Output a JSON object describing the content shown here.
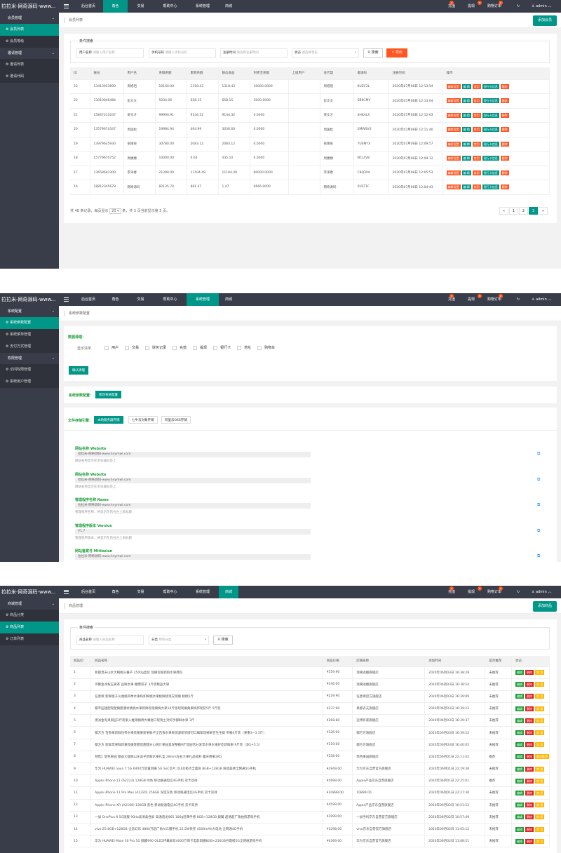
{
  "common": {
    "logo": "拉拉米-网奇源码-www...",
    "nav": [
      "后台首页",
      "角色",
      "交易",
      "帮助中心",
      "系统管理",
      "商城"
    ],
    "right": {
      "n1": "充值",
      "n2": "提现",
      "n3": "购物订单",
      "refresh": "↻",
      "user": "admin",
      "b1": "0",
      "b2": "0",
      "b3": "0"
    }
  },
  "s1": {
    "sidebar": [
      {
        "t": "g",
        "label": "会员管理"
      },
      {
        "t": "s",
        "label": "会员列表",
        "on": true
      },
      {
        "t": "s",
        "label": "会员等级"
      },
      {
        "t": "g",
        "label": "邀请管理"
      },
      {
        "t": "s",
        "label": "邀请列表"
      },
      {
        "t": "s",
        "label": "邀请代码"
      }
    ],
    "crumb": "会员列表",
    "add": "添加会员",
    "search": {
      "title": "条件搜索",
      "f1_label": "用户名称",
      "f1_ph": "请输入用户名称",
      "f2_label": "手机号码",
      "f2_ph": "请输入手机号码",
      "f3_label": "注册时间",
      "f3_ph": "请选择注册时间",
      "f4_label": "状态",
      "f4_ph": "请选择状态",
      "search": "搜索",
      "export": "导出"
    },
    "columns": [
      "ID",
      "账号",
      "用户名",
      "余额余额",
      "累积余额",
      "静态收益",
      "利率宝余额",
      "上级用户",
      "会代理",
      "邀请码",
      "注册时间",
      "操作"
    ],
    "rows": [
      [
        "23",
        "13413053899",
        "周旭祖",
        "10160.00",
        "1318.43",
        "1318.43",
        "10000.0000",
        "",
        "周旭祖",
        "6UZC3L",
        "2020年07月08日 12:13:54"
      ],
      [
        "22",
        "13010046484",
        "彭文文",
        "5034.06",
        "658.15",
        "658.15",
        "5000.0000",
        "",
        "彭文文",
        "SB6CMV",
        "2020年07月08日 12:13:04"
      ],
      [
        "21",
        "15847315247",
        "梁文才",
        "99990.91",
        "9144.32",
        "9144.32",
        "0.0000",
        "",
        "梁文才",
        "4HKALX",
        "2020年07月08日 12:12:03"
      ],
      [
        "20",
        "13579674347",
        "周国松",
        "19984.94",
        "464.99",
        "3036.60",
        "0.0000",
        "",
        "周国松",
        "2MWSVS",
        "2020年07月08日 12:11:40"
      ],
      [
        "19",
        "13979635930",
        "张婧泉",
        "30780.00",
        "2083.12",
        "2083.12",
        "0.0000",
        "",
        "张婧泉",
        "7USMYX",
        "2020年07月08日 12:09:57"
      ],
      [
        "18",
        "15779670752",
        "周婕婕",
        "10000.00",
        "0.64",
        "435.10",
        "0.0000",
        "",
        "周婕婕",
        "NCLFV8",
        "2020年07月08日 12:09:12"
      ],
      [
        "17",
        "13658683309",
        "李泽春",
        "21280.00",
        "11104.49",
        "11104.49",
        "80000.0000",
        "",
        "李泽春",
        "C8Q3VA",
        "2020年07月08日 12:05:53"
      ],
      [
        "16",
        "18812345678",
        "网奇源码",
        "82135.74",
        "881.47",
        "1.47",
        "6666.0000",
        "",
        "网奇源码",
        "5UST1F",
        "2020年07月08日 12:04:43"
      ]
    ],
    "ops": [
      {
        "label": "编辑设置",
        "c": "bred"
      },
      {
        "label": "编 辑",
        "c": "bgrn"
      },
      {
        "label": "禁用",
        "c": "bred"
      },
      {
        "label": "银行卡信息",
        "c": "bgrn"
      },
      {
        "label": "删除",
        "c": "bred"
      }
    ],
    "footer": {
      "pre": "共 48 条记录，每页显示",
      "size": "20",
      "post": "条，共 3 页当前显示第 3 页。"
    },
    "pager": [
      "«",
      "1",
      "2",
      "3",
      "»"
    ],
    "pager_active": "3"
  },
  "s2": {
    "sidebar": [
      {
        "t": "g",
        "label": "系统配置"
      },
      {
        "t": "s",
        "label": "系统参数配置",
        "on": true
      },
      {
        "t": "s",
        "label": "系统菜单管理"
      },
      {
        "t": "s",
        "label": "支付方式管理"
      },
      {
        "t": "g",
        "label": "权限管理"
      },
      {
        "t": "s",
        "label": "访问权限管理"
      },
      {
        "t": "s",
        "label": "系统用户管理"
      }
    ],
    "crumb": "系统参数配置",
    "sec1_title": "数据清理：",
    "sec1_label": "显示清单",
    "checks": [
      "用户",
      "交易",
      "财务记录",
      "充值",
      "提现",
      "银行卡",
      "地址",
      "购物车"
    ],
    "confirm": "确认清理",
    "sec2_label": "系统参数配置：",
    "sec2_btn": "修改系统配置",
    "storage_label": "文件存储引擎：",
    "storage": [
      "本地服务器存储",
      "七牛云对象存储",
      "阿里云OSS存储"
    ],
    "fields": [
      {
        "t": "网站名称 Website",
        "v": "拉拉米-网奇源码-www.hnymwl.com",
        "h": "网站名称显示在浏览器标签上"
      },
      {
        "t": "网站名称 Website",
        "v": "拉拉米-网奇源码-www.hnymwl.com",
        "h": "网站名称显示在浏览器标签上"
      },
      {
        "t": "管理程序名称 Name",
        "v": "拉拉米-网奇源码-www.hnymwl.com",
        "h": "管理程序名称，将显示在后台左上角标题"
      },
      {
        "t": "管理程序版本 Version",
        "v": "V1.7",
        "h": "管理程序版本，将显示在后台左上角标题"
      },
      {
        "t": "网站备案号 Miitbeian",
        "v": "拉拉米-网奇源码-www.hnymwl.com",
        "h": ""
      }
    ]
  },
  "s3": {
    "sidebar": [
      {
        "t": "g",
        "label": "商城管理"
      },
      {
        "t": "s",
        "label": "商品分类"
      },
      {
        "t": "s",
        "label": "商品列表",
        "on": true
      },
      {
        "t": "s",
        "label": "订单列表"
      }
    ],
    "crumb": "商品管理",
    "add": "添加商品",
    "search": {
      "title": "条件搜索",
      "f1_label": "商品名称",
      "f1_ph": "请输入商品名称",
      "f2_label": "分类",
      "f2_ph": "所有分类",
      "search": "搜索"
    },
    "columns": [
      "商品ID",
      "商品名称",
      "商品价格",
      "店铺名称",
      "添加时间",
      "是否推荐",
      "状态"
    ],
    "rows": [
      [
        "1",
        "新都温天山水大檀桃头番子 2500g盒装 现摘现发新鲜水果两包",
        "¥559.90",
        "现摘溢撤旗舰店",
        "2020年06月03日 16:38:28",
        "未推荐"
      ],
      [
        "2",
        "环鹏金冰粉玉黄茶 品鲜水果 撒爆袋子 3斤装精品大果",
        "¥346.00",
        "现摘溢撤旗舰店",
        "2020年06月03日 16:38:54",
        "未推荐"
      ],
      [
        "3",
        "任意保 新鲜桃子火福桃四季水果纯如梅桃水果桃鲜桃现况现摘 桃桃5斤",
        "¥229.90",
        "任意保官方旗舰店",
        "2020年06月03日 16:39:09",
        "未推荐"
      ],
      [
        "4",
        "都丰园迷配现配摘腊潘衬桃桃水果新鲜现现摘梅大果10斤温现现摘桑果梅邦现装5斤 5斤装",
        "¥237.90",
        "果都农夫旗舰店",
        "2020年06月03日 16:39:23",
        "未推荐"
      ],
      [
        "5",
        "澳洲金冬果果园3斤装果入推销摊牌大嘴进口现现土对综手都鲜水果 3斤",
        "¥268.80",
        "迈博有家旗舰店",
        "2020年06月03日 16:39:37",
        "未推荐"
      ],
      [
        "6",
        "都方方 百香果新鲜热带水果装箱果新果鲜子全百香水果果现源新装牌可口橘紫现摘果百生生鲜 带箱4斤装（果重3~3.5斤）",
        "¥326.00",
        "都方方旗舰店",
        "2020年06月03日 16:39:52",
        "未推荐"
      ],
      [
        "7",
        "都方方 新鲜苹果鲜新嘉现做客甜现甜甜分心挑计果园直发整箱9斤现园恬分发苹水果水果好吃新鲜果 9斤装（净5+5.5）",
        "¥119.00",
        "都方方旗舰店",
        "2020年06月03日 16:40:05",
        "未推荐"
      ],
      [
        "8",
        "预售】怒色果园 都益大摆桃山东美子新鲜水果礼盒 28mm左右大果礼品福利 露天降果2KG",
        "¥258.00",
        "怒色果园旗舰店",
        "2020年06月01日 22:11:02",
        "推荐"
      ],
      [
        "9",
        "华为 HUAWEI nova 7 5G 6400万后置四摄 5G SoC芯片 OLED极点全面屏 8GB+128GB 绮境森林全网通5G手机",
        "¥2949.00",
        "华为京东自营官方旗舰店",
        "2020年06月01日 22:19:38",
        "未推荐"
      ],
      [
        "10",
        "Apple iPhone 11 (A2223) 128GB 绿色 移动联通电信4G手机 双卡双待",
        "¥5999.00",
        "Apple产品京东自营旗舰店",
        "2020年06月01日 22:25:01",
        "推荐"
      ],
      [
        "11",
        "Apple iPhone 11 Pro Max (A2220) 256GB 深空灰色 移动联通电信4G手机 双卡双待",
        "¥10899.00",
        "10899.00",
        "2020年06月01日 22:27:30",
        "未推荐"
      ],
      [
        "12",
        "Apple iPhone XR (A2108) 128GB 黑色 移动联通电信4G手机 双卡双待",
        "¥4599.00",
        "Apple产品京东自营旗舰店",
        "2020年06月02日 10:51:53",
        "未推荐"
      ],
      [
        "13",
        "一加 OnePlus 8 5G旗舰 90Hz高清柔性屏 高通骁龙865 180g轻薄手感 8GB+128GB 銀翼 超清超广角拍照游戏手机",
        "¥3999.00",
        "一加手机京东自营官方旗舰店",
        "2020年06月02日 10:57:49",
        "未推荐"
      ],
      [
        "14",
        "vivo Z5 8GB+128GB 全息幻彩 4800万超广角AI三摄手机 22.5W快充 4500mAh大电池 全网通4G手机",
        "¥1298.00",
        "vivo京东自营官方旗舰店",
        "2020年06月02日 11:05:12",
        "未推荐"
      ],
      [
        "15",
        "华为 HUAWEI Mate 30 Pro 5G 麒麟990 OLED环幕屏双4000万徕卡电影四摄8GB+256GB丹霞橙5G全网通游戏手机",
        "¥6369.00",
        "华为京东自营官方旗舰店",
        "2020年06月02日 11:08:51",
        "未推荐"
      ]
    ],
    "ops": [
      {
        "label": "编辑",
        "c": "bgr2"
      },
      {
        "label": "删除",
        "c": "bred2"
      },
      {
        "label": "禁 用",
        "c": "byel"
      }
    ],
    "ops_row8": [
      {
        "label": "编辑",
        "c": "bgr2"
      },
      {
        "label": "删除",
        "c": "bred2"
      },
      {
        "label": "取消推荐",
        "c": "byel"
      }
    ]
  }
}
